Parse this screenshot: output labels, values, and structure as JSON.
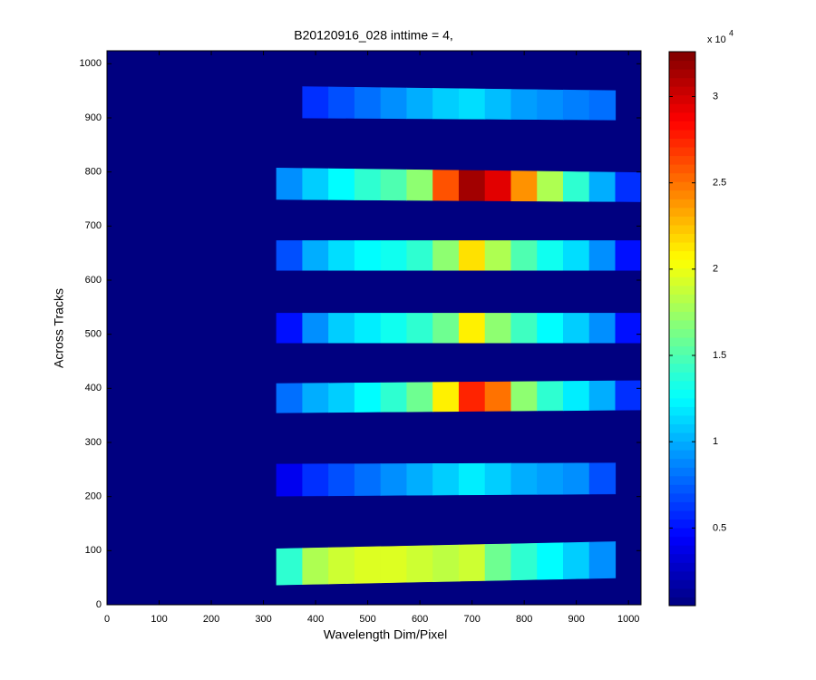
{
  "chart_data": {
    "type": "heatmap",
    "title": "B20120916_028 inttime = 4,",
    "x_label": "Wavelength Dim/Pixel",
    "y_label": "Across Tracks",
    "colormap": "jet",
    "xlim": [
      0,
      1024
    ],
    "xticks": [
      0,
      100,
      200,
      300,
      400,
      500,
      600,
      700,
      800,
      900,
      1000
    ],
    "ylim": [
      0,
      1024
    ],
    "yticks": [
      0,
      100,
      200,
      300,
      400,
      500,
      600,
      700,
      800,
      900,
      1000
    ],
    "clim": [
      500,
      32600
    ],
    "cticks": [
      {
        "value": 5000,
        "label": "0.5"
      },
      {
        "value": 10000,
        "label": "1"
      },
      {
        "value": 15000,
        "label": "1.5"
      },
      {
        "value": 20000,
        "label": "2"
      },
      {
        "value": 25000,
        "label": "2.5"
      },
      {
        "value": 30000,
        "label": "3"
      }
    ],
    "colorbar_multiplier": "x 10",
    "colorbar_exponent": "4",
    "x": [
      350,
      400,
      450,
      500,
      550,
      600,
      650,
      700,
      750,
      800,
      850,
      900,
      950,
      1000
    ],
    "bands": [
      {
        "bottom": [
          900,
          896
        ],
        "top": [
          958,
          950
        ],
        "values": [
          null,
          6000,
          7000,
          8000,
          9000,
          10000,
          11000,
          11500,
          10500,
          9500,
          9000,
          8500,
          8000,
          null
        ]
      },
      {
        "bottom": [
          749,
          745
        ],
        "top": [
          807,
          799
        ],
        "values": [
          9000,
          11000,
          12500,
          14000,
          15000,
          17000,
          26000,
          31500,
          29500,
          24000,
          18000,
          14000,
          10000,
          6000
        ]
      },
      {
        "bottom": [
          618,
          618
        ],
        "top": [
          673,
          673
        ],
        "values": [
          7000,
          10000,
          11500,
          12500,
          13000,
          14000,
          17000,
          21500,
          18000,
          15000,
          13000,
          11500,
          9000,
          5000
        ]
      },
      {
        "bottom": [
          484,
          484
        ],
        "top": [
          539,
          539
        ],
        "values": [
          5000,
          9000,
          11000,
          12000,
          13000,
          14000,
          16000,
          21000,
          17000,
          14500,
          12500,
          11000,
          9000,
          5000
        ]
      },
      {
        "bottom": [
          355,
          360
        ],
        "top": [
          409,
          414
        ],
        "values": [
          8000,
          10000,
          11000,
          12500,
          14000,
          16000,
          21000,
          27500,
          25000,
          17000,
          14000,
          12000,
          10000,
          6000
        ]
      },
      {
        "bottom": [
          201,
          205
        ],
        "top": [
          260,
          262
        ],
        "values": [
          4000,
          6000,
          7000,
          8000,
          9000,
          10000,
          11000,
          12000,
          11000,
          10000,
          9500,
          9000,
          7000,
          null
        ]
      },
      {
        "bottom": [
          37,
          50
        ],
        "top": [
          104,
          117
        ],
        "values": [
          14000,
          18000,
          19000,
          19500,
          19500,
          19000,
          18500,
          19000,
          16000,
          14000,
          12500,
          11000,
          9000,
          null
        ]
      }
    ]
  }
}
